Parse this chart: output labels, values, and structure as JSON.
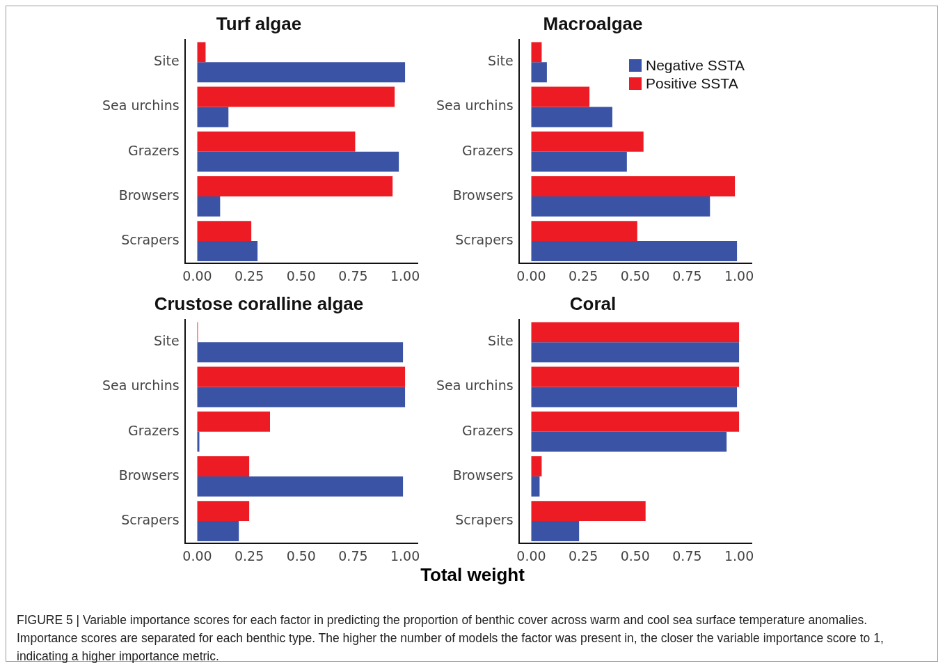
{
  "chart_data": [
    {
      "type": "bar",
      "orientation": "horizontal",
      "title": "Turf algae",
      "categories": [
        "Site",
        "Sea urchins",
        "Grazers",
        "Browsers",
        "Scrapers"
      ],
      "series": [
        {
          "color": "#ed1c24",
          "values": [
            0.04,
            0.95,
            0.76,
            0.94,
            0.26
          ]
        },
        {
          "color": "#3a53a4",
          "values": [
            1.0,
            0.15,
            0.97,
            0.11,
            0.29
          ]
        }
      ],
      "xlim": [
        -0.06,
        1.06
      ],
      "xticks": [
        {
          "value": 0,
          "label": "0.00"
        },
        {
          "value": 0.25,
          "label": "0.25"
        },
        {
          "value": 0.5,
          "label": "0.50"
        },
        {
          "value": 0.75,
          "label": "0.75"
        },
        {
          "value": 1,
          "label": "1.00"
        }
      ],
      "grid": false,
      "legend": false
    },
    {
      "type": "bar",
      "orientation": "horizontal",
      "title": "Macroalgae",
      "categories": [
        "Site",
        "Sea urchins",
        "Grazers",
        "Browsers",
        "Scrapers"
      ],
      "series": [
        {
          "name": "Positive SSTA",
          "color": "#ed1c24",
          "values": [
            0.05,
            0.28,
            0.54,
            0.98,
            0.51
          ]
        },
        {
          "name": "Negative SSTA",
          "color": "#3a53a4",
          "values": [
            0.075,
            0.39,
            0.46,
            0.86,
            0.99
          ]
        }
      ],
      "xlim": [
        -0.06,
        1.06
      ],
      "xticks": [
        {
          "value": 0,
          "label": "0.00"
        },
        {
          "value": 0.25,
          "label": "0.25"
        },
        {
          "value": 0.5,
          "label": "0.50"
        },
        {
          "value": 0.75,
          "label": "0.75"
        },
        {
          "value": 1,
          "label": "1.00"
        }
      ],
      "grid": false,
      "legend": "top right"
    },
    {
      "type": "bar",
      "orientation": "horizontal",
      "title": "Crustose coralline algae",
      "categories": [
        "Site",
        "Sea urchins",
        "Grazers",
        "Browsers",
        "Scrapers"
      ],
      "series": [
        {
          "color": "#ed1c24",
          "values": [
            0.003,
            1.0,
            0.35,
            0.25,
            0.25
          ]
        },
        {
          "color": "#3a53a4",
          "values": [
            0.99,
            1.0,
            0.01,
            0.99,
            0.2
          ]
        }
      ],
      "xlim": [
        -0.06,
        1.06
      ],
      "xticks": [
        {
          "value": 0,
          "label": "0.00"
        },
        {
          "value": 0.25,
          "label": "0.25"
        },
        {
          "value": 0.5,
          "label": "0.50"
        },
        {
          "value": 0.75,
          "label": "0.75"
        },
        {
          "value": 1,
          "label": "1.00"
        }
      ],
      "grid": false,
      "legend": false,
      "xlabel": "Total weight"
    },
    {
      "type": "bar",
      "orientation": "horizontal",
      "title": "Coral",
      "categories": [
        "Site",
        "Sea urchins",
        "Grazers",
        "Browsers",
        "Scrapers"
      ],
      "series": [
        {
          "color": "#ed1c24",
          "values": [
            1.0,
            1.0,
            1.0,
            0.05,
            0.55
          ]
        },
        {
          "color": "#3a53a4",
          "values": [
            1.0,
            0.99,
            0.94,
            0.04,
            0.23
          ]
        }
      ],
      "xlim": [
        -0.06,
        1.06
      ],
      "xticks": [
        {
          "value": 0,
          "label": "0.00"
        },
        {
          "value": 0.25,
          "label": "0.25"
        },
        {
          "value": 0.5,
          "label": "0.50"
        },
        {
          "value": 0.75,
          "label": "0.75"
        },
        {
          "value": 1,
          "label": "1.00"
        }
      ],
      "grid": false,
      "legend": false,
      "annotations": [
        "FIGURE 5 | Variable importance scores for each factor in predicting the proportion of benthic cover across warm and cool sea surface temperature anomalies. Importance scores are separated for each benthic type. The higher the number of models the factor was present in, the closer the variable importance score to 1, indicating a higher importance metric."
      ]
    }
  ]
}
